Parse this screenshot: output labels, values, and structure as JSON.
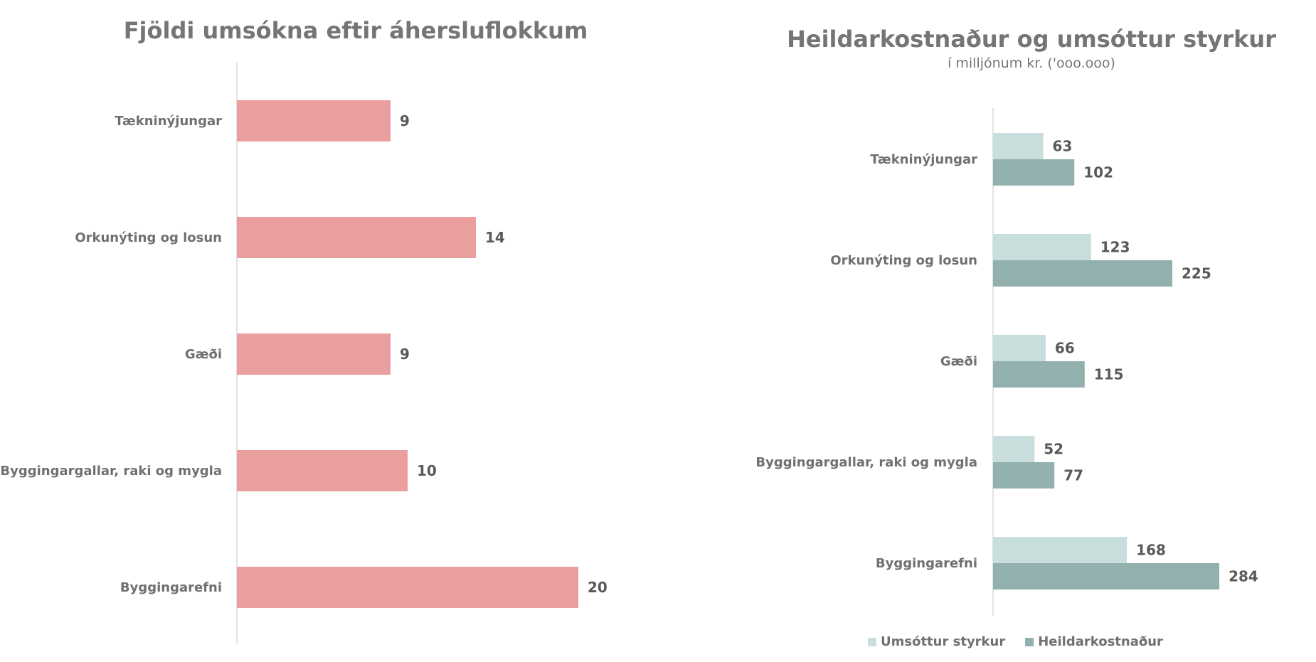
{
  "chart_data": [
    {
      "type": "bar",
      "orientation": "horizontal",
      "title": "Fjöldi umsókna eftir áhersluflokkum",
      "categories": [
        "Tækninýjungar",
        "Orkunýting og losun",
        "Gæði",
        "Byggingargallar, raki og mygla",
        "Byggingarefni"
      ],
      "series": [
        {
          "values": [
            9,
            14,
            9,
            10,
            20
          ],
          "color": "#eb9e9e"
        }
      ],
      "xlim": [
        0,
        22
      ],
      "grid": false,
      "legend": "none"
    },
    {
      "type": "bar",
      "orientation": "horizontal",
      "title": "Heildarkostnaður og umsóttur styrkur",
      "subtitle": "í milljónum kr. ('ooo.ooo)",
      "categories": [
        "Tækninýjungar",
        "Orkunýting og losun",
        "Gæði",
        "Byggingargallar, raki og mygla",
        "Byggingarefni"
      ],
      "series": [
        {
          "name": "Umsóttur styrkur",
          "values": [
            63,
            123,
            66,
            52,
            168
          ],
          "color": "#c7dedd"
        },
        {
          "name": "Heildarkostnaður",
          "values": [
            102,
            225,
            115,
            77,
            284
          ],
          "color": "#91b0ae"
        }
      ],
      "xlim": [
        0,
        300
      ],
      "grid": false,
      "legend": "bottom"
    }
  ]
}
